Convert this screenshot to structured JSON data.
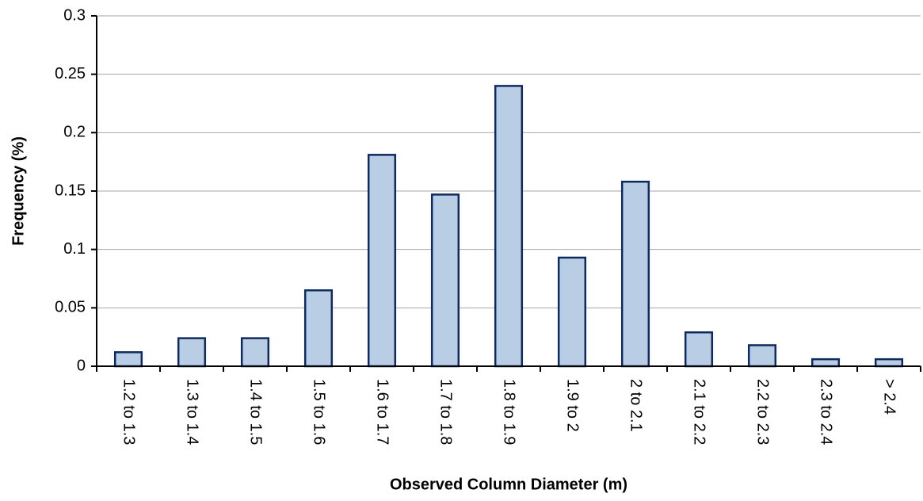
{
  "chart_data": {
    "type": "bar",
    "xlabel": "Observed Column Diameter (m)",
    "ylabel": "Frequency (%)",
    "categories": [
      "1.2 to 1.3",
      "1.3 to 1.4",
      "1.4 to 1.5",
      "1.5 to 1.6",
      "1.6 to 1.7",
      "1.7 to 1.8",
      "1.8 to 1.9",
      "1.9 to 2",
      "2 to 2.1",
      "2.1 to 2.2",
      "2.2 to 2.3",
      "2.3 to 2.4",
      "> 2.4"
    ],
    "values": [
      0.012,
      0.024,
      0.024,
      0.065,
      0.181,
      0.147,
      0.24,
      0.093,
      0.158,
      0.029,
      0.018,
      0.006,
      0.006
    ],
    "color": "#b9cde5",
    "edgecolor": "#0f2a5e",
    "ylim": [
      0,
      0.3
    ],
    "yticks": [
      0,
      0.05,
      0.1,
      0.15,
      0.2,
      0.25,
      0.3
    ],
    "grid": true
  }
}
